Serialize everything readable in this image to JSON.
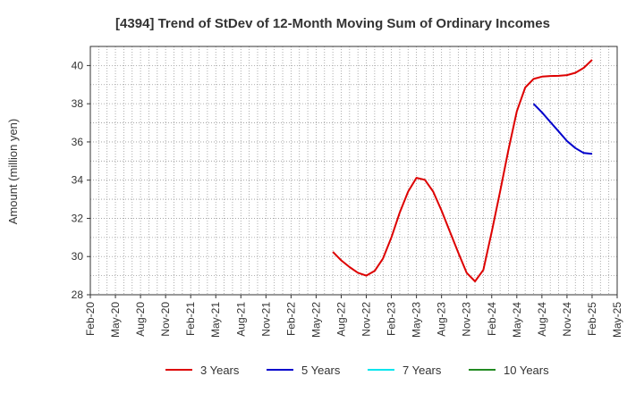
{
  "chart_data": {
    "type": "line",
    "title": "[4394]  Trend of StDev of 12-Month Moving Sum of Ordinary Incomes",
    "xlabel": "",
    "ylabel": "Amount (million yen)",
    "ylim": [
      28,
      41
    ],
    "yticks": [
      "28",
      "30",
      "32",
      "34",
      "36",
      "38",
      "40"
    ],
    "x_start": "2020-02",
    "x_end": "2025-05",
    "xticks": [
      "Feb-20",
      "May-20",
      "Aug-20",
      "Nov-20",
      "Feb-21",
      "May-21",
      "Aug-21",
      "Nov-21",
      "Feb-22",
      "May-22",
      "Aug-22",
      "Nov-22",
      "Feb-23",
      "May-23",
      "Aug-23",
      "Nov-23",
      "Feb-24",
      "May-24",
      "Aug-24",
      "Nov-24",
      "Feb-25",
      "May-25"
    ],
    "grid": true,
    "legend_position": "bottom",
    "series": [
      {
        "name": "3 Years",
        "color": "#dd0000",
        "points": [
          [
            "2022-07",
            30.25
          ],
          [
            "2022-08",
            29.8
          ],
          [
            "2022-09",
            29.45
          ],
          [
            "2022-10",
            29.15
          ],
          [
            "2022-11",
            29.0
          ],
          [
            "2022-12",
            29.25
          ],
          [
            "2023-01",
            29.9
          ],
          [
            "2023-02",
            31.0
          ],
          [
            "2023-03",
            32.3
          ],
          [
            "2023-04",
            33.4
          ],
          [
            "2023-05",
            34.12
          ],
          [
            "2023-06",
            34.02
          ],
          [
            "2023-07",
            33.4
          ],
          [
            "2023-08",
            32.4
          ],
          [
            "2023-09",
            31.3
          ],
          [
            "2023-10",
            30.2
          ],
          [
            "2023-11",
            29.15
          ],
          [
            "2023-12",
            28.7
          ],
          [
            "2024-01",
            29.3
          ],
          [
            "2024-02",
            31.3
          ],
          [
            "2024-03",
            33.4
          ],
          [
            "2024-04",
            35.6
          ],
          [
            "2024-05",
            37.6
          ],
          [
            "2024-06",
            38.85
          ],
          [
            "2024-07",
            39.3
          ],
          [
            "2024-08",
            39.42
          ],
          [
            "2024-09",
            39.45
          ],
          [
            "2024-10",
            39.46
          ],
          [
            "2024-11",
            39.5
          ],
          [
            "2024-12",
            39.62
          ],
          [
            "2025-01",
            39.88
          ],
          [
            "2025-02",
            40.3
          ]
        ]
      },
      {
        "name": "5 Years",
        "color": "#0000cc",
        "points": [
          [
            "2024-07",
            38.0
          ],
          [
            "2024-08",
            37.55
          ],
          [
            "2024-09",
            37.05
          ],
          [
            "2024-10",
            36.55
          ],
          [
            "2024-11",
            36.05
          ],
          [
            "2024-12",
            35.68
          ],
          [
            "2025-01",
            35.42
          ],
          [
            "2025-02",
            35.38
          ]
        ]
      },
      {
        "name": "7 Years",
        "color": "#00e5ee",
        "points": []
      },
      {
        "name": "10 Years",
        "color": "#228b22",
        "points": []
      }
    ]
  }
}
